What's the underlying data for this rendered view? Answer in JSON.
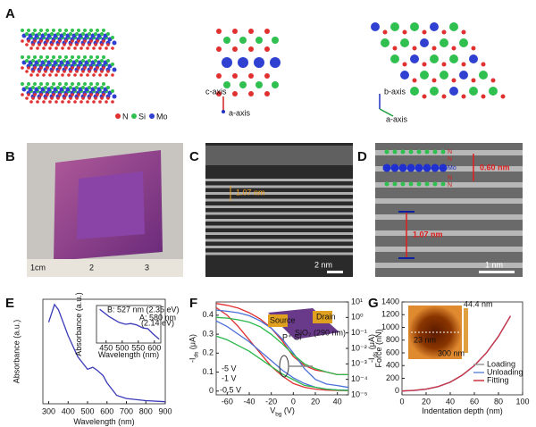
{
  "panels": {
    "A": {
      "label": "A",
      "legend": [
        "N",
        "Si",
        "Mo"
      ],
      "axes_side": [
        "c-axis",
        "a-axis"
      ],
      "axes_top": [
        "b-axis",
        "a-axis"
      ]
    },
    "B": {
      "label": "B",
      "ruler": [
        "1cm",
        "2",
        "3"
      ]
    },
    "C": {
      "label": "C",
      "spacing": "1.07 nm",
      "scale": "2 nm"
    },
    "D": {
      "label": "D",
      "atoms": [
        "N",
        "N",
        "Mo",
        "N",
        "N"
      ],
      "spacing_top": "0.60 nm",
      "spacing_bottom": "1.07 nm",
      "scale": "1 nm"
    }
  },
  "chart_data": [
    {
      "type": "line",
      "label": "E",
      "xlabel": "Wavelength (nm)",
      "ylabel": "Absorbance (a.u.)",
      "x": [
        300,
        330,
        350,
        400,
        450,
        500,
        527,
        550,
        580,
        600,
        650,
        700,
        800,
        900
      ],
      "series": [
        {
          "color": "#3a3ab8",
          "values": [
            0.78,
            0.95,
            0.9,
            0.65,
            0.45,
            0.33,
            0.35,
            0.32,
            0.27,
            0.2,
            0.08,
            0.05,
            0.03,
            0.02
          ]
        }
      ],
      "xlim": [
        270,
        900
      ],
      "xticks": [
        300,
        400,
        500,
        600,
        700,
        800,
        900
      ],
      "ylim": [
        0,
        1
      ],
      "inset": {
        "type": "line",
        "xlabel": "Wavelength (nm)",
        "ylabel": "Absorbance (a.u.)",
        "x": [
          430,
          460,
          490,
          510,
          527,
          545,
          565,
          580,
          595,
          615
        ],
        "series": [
          {
            "color": "#3a3ab8",
            "values": [
              0.9,
              0.7,
              0.55,
              0.5,
              0.52,
              0.48,
              0.4,
              0.38,
              0.25,
              0.1
            ]
          }
        ],
        "xlim": [
          420,
          620
        ],
        "xticks": [
          450,
          500,
          550,
          600
        ],
        "ylim": [
          0,
          1
        ],
        "annotations": [
          "B: 527 nm (2.35 eV)",
          "A: 580 nm",
          "(2.14 eV)"
        ]
      }
    },
    {
      "type": "line",
      "label": "F",
      "xlabel": [
        "V",
        "bg",
        " (V)"
      ],
      "ylabel": [
        "-I",
        "ds",
        " (μA)"
      ],
      "y2label": [
        "-I",
        "ds",
        " (μA)"
      ],
      "x": [
        -70,
        -60,
        -50,
        -40,
        -30,
        -20,
        -10,
        0,
        10,
        20,
        30,
        40,
        50
      ],
      "series": [
        {
          "name": "-5 V",
          "color": "#e03030",
          "values": [
            0.44,
            0.4,
            0.34,
            0.27,
            0.2,
            0.13,
            0.08,
            0.04,
            0.02,
            0.01,
            0.005,
            0.003,
            0.002
          ]
        },
        {
          "name": "-1 V",
          "color": "#4a70d8",
          "values": [
            0.37,
            0.34,
            0.3,
            0.26,
            0.21,
            0.16,
            0.11,
            0.07,
            0.04,
            0.02,
            0.01,
            0.006,
            0.004
          ]
        },
        {
          "name": "-0.5 V",
          "color": "#2bb84a",
          "values": [
            0.29,
            0.27,
            0.24,
            0.21,
            0.17,
            0.13,
            0.09,
            0.06,
            0.03,
            0.02,
            0.01,
            0.005,
            0.003
          ]
        },
        {
          "color": "#e03030",
          "axis": "y2",
          "values": [
            8,
            6,
            4,
            2,
            0.8,
            0.2,
            0.03,
            0.003,
            0.0008,
            0.0004,
            0.0003,
            0.0002,
            0.0002
          ]
        },
        {
          "color": "#4a70d8",
          "axis": "y2",
          "values": [
            3,
            2.5,
            2,
            1.3,
            0.6,
            0.2,
            0.04,
            0.005,
            0.0005,
            0.0001,
            5e-05,
            4e-05,
            3e-05
          ]
        },
        {
          "color": "#2bb84a",
          "axis": "y2",
          "values": [
            1,
            0.9,
            0.7,
            0.5,
            0.25,
            0.08,
            0.02,
            0.004,
            0.001,
            0.0005,
            0.0003,
            0.0002,
            0.0002
          ]
        }
      ],
      "xlim": [
        -70,
        50
      ],
      "xticks": [
        -60,
        -40,
        -20,
        0,
        20,
        40
      ],
      "ylim": [
        -0.02,
        0.47
      ],
      "yticks": [
        0,
        0.1,
        0.2,
        0.3,
        0.4
      ],
      "y2lim": [
        1e-05,
        10
      ],
      "y2log": true,
      "y2ticks": [
        {
          "value": 1e-05,
          "label": "10⁻⁵"
        },
        {
          "value": 0.0001,
          "label": "10⁻⁴"
        },
        {
          "value": 0.001,
          "label": "10⁻³"
        },
        {
          "value": 0.01,
          "label": "10⁻²"
        },
        {
          "value": 0.1,
          "label": "10⁻¹"
        },
        {
          "value": 1,
          "label": "10⁰"
        },
        {
          "value": 10,
          "label": "10¹"
        }
      ],
      "inset": [
        "Source",
        "Drain",
        "SiO₂ (290 nm)",
        "P⁺ Si"
      ]
    },
    {
      "type": "line",
      "label": "G",
      "xlabel": "Indentation depth (nm)",
      "ylabel": "Force (nN)",
      "x": [
        0,
        10,
        20,
        30,
        40,
        50,
        60,
        70,
        80,
        90
      ],
      "series": [
        {
          "name": "Loading",
          "color": "#999999",
          "values": [
            0,
            12,
            32,
            72,
            142,
            252,
            402,
            602,
            862,
            1180
          ]
        },
        {
          "name": "Unloading",
          "color": "#6a8ad8",
          "values": [
            0,
            8,
            28,
            68,
            138,
            248,
            398,
            598,
            858,
            1180
          ]
        },
        {
          "name": "Fitting",
          "color": "#d03040",
          "values": [
            0,
            10,
            30,
            70,
            140,
            250,
            400,
            600,
            860,
            1180
          ]
        }
      ],
      "xlim": [
        0,
        100
      ],
      "xticks": [
        0,
        20,
        40,
        60,
        80,
        100
      ],
      "ylim": [
        -60,
        1400
      ],
      "yticks": [
        0,
        200,
        400,
        600,
        800,
        1000,
        1200,
        1400
      ],
      "inset": [
        "44.4 nm",
        "23 nm",
        "300 nm"
      ]
    }
  ]
}
